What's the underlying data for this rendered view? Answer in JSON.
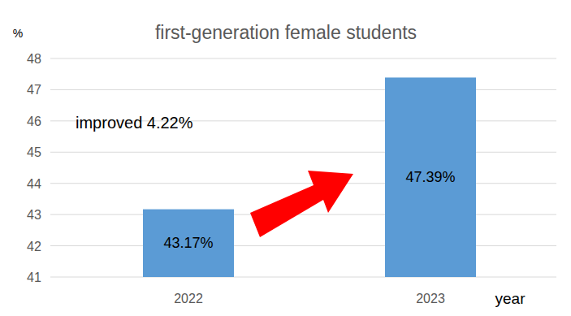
{
  "chart_data": {
    "type": "bar",
    "title": "first-generation female students",
    "y_label": "%",
    "x_label": "year",
    "annotation": "improved 4.22%",
    "categories": [
      "2022",
      "2023"
    ],
    "values": [
      43.17,
      47.39
    ],
    "value_labels": [
      "43.17%",
      "47.39%"
    ],
    "data_labels": true,
    "color": "#5b9bd5",
    "ylim": [
      41,
      48
    ],
    "yticks": [
      41,
      42,
      43,
      44,
      45,
      46,
      47,
      48
    ],
    "grid": true
  }
}
